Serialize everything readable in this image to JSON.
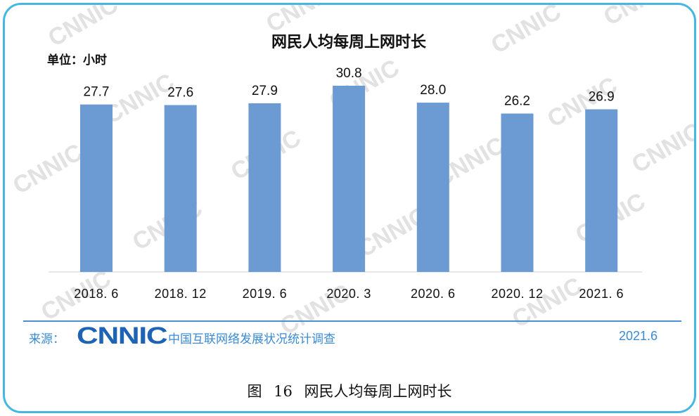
{
  "chart_data": {
    "type": "bar",
    "title": "网民人均每周上网时长",
    "unit_label": "单位：小时",
    "categories": [
      "2018.6",
      "2018.12",
      "2019.6",
      "2020.3",
      "2020.6",
      "2020.12",
      "2021.6"
    ],
    "tick_labels": [
      "2018. 6",
      "2018. 12",
      "2019. 6",
      "2020. 3",
      "2020. 6",
      "2020. 12",
      "2021. 6"
    ],
    "values": [
      27.7,
      27.6,
      27.9,
      30.8,
      28.0,
      26.2,
      26.9
    ],
    "value_labels": [
      "27.7",
      "27.6",
      "27.9",
      "30.8",
      "28.0",
      "26.2",
      "26.9"
    ],
    "bar_color": "#6b9bd2",
    "ylim": [
      0,
      30.8
    ],
    "grid": false,
    "legend": "none"
  },
  "watermark": "CNNIC",
  "source": {
    "label": "来源：",
    "logo": "CNNIC",
    "text": "中国互联网络发展状况统计调查",
    "date": "2021.6"
  },
  "caption": "图 16 网民人均每周上网时长",
  "colors": {
    "frame_border": "#46b7e3",
    "source_text": "#3a8ad6",
    "logo": "#1e63b4"
  }
}
